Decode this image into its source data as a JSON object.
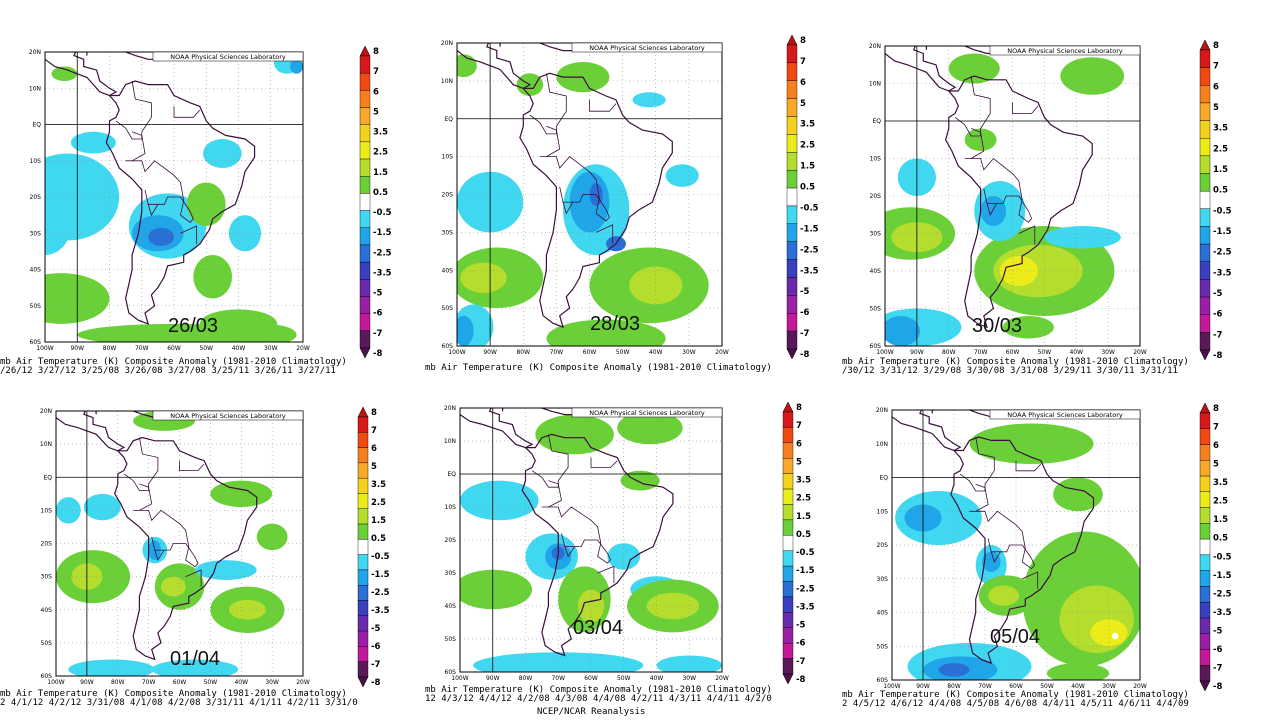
{
  "panels": [
    {
      "date_label": "26/03",
      "caption": "mb Air Temperature (K) Composite Anomaly (1981-2010 Climatology)",
      "dates": "/26/12 3/27/12 3/25/08 3/26/08 3/27/08 3/25/11 3/26/11 3/27/11"
    },
    {
      "date_label": "28/03",
      "caption": "mb Air Temperature (K) Composite Anomaly (1981-2010 Climatology)",
      "dates": ""
    },
    {
      "date_label": "30/03",
      "caption": "mb Air Temperature (K) Composite Anomaly (1981-2010 Climatology)",
      "dates": "/30/12 3/31/12 3/29/08 3/30/08 3/31/08 3/29/11 3/30/11 3/31/11"
    },
    {
      "date_label": "01/04",
      "caption": "mb Air Temperature (K) Composite Anomaly (1981-2010 Climatology)",
      "dates": "2 4/1/12 4/2/12 3/31/08 4/1/08 4/2/08 3/31/11 4/1/11 4/2/11 3/31/0"
    },
    {
      "date_label": "03/04",
      "caption": "mb Air Temperature (K) Composite Anomaly (1981-2010 Climatology)",
      "dates": "12 4/3/12 4/4/12 4/2/08 4/3/08 4/4/08 4/2/11 4/3/11 4/4/11 4/2/0"
    },
    {
      "date_label": "05/04",
      "caption": "mb Air Temperature (K) Composite Anomaly (1981-2010 Climatology)",
      "dates": "2 4/5/12 4/6/12 4/4/08 4/5/08 4/6/08 4/4/11 4/5/11 4/6/11 4/4/09"
    }
  ],
  "credit": "NOAA Physical Sciences Laboratory",
  "lat_labels": [
    "20N",
    "10N",
    "EQ",
    "10S",
    "20S",
    "30S",
    "40S",
    "50S",
    "60S"
  ],
  "lon_labels": [
    "100W",
    "90W",
    "80W",
    "70W",
    "60W",
    "50W",
    "40W",
    "30W",
    "20W"
  ],
  "footer_text": "NCEP/NCAR Reanalysis",
  "chart_data": {
    "type": "heatmap",
    "x_range": [
      -100,
      -20
    ],
    "y_range": [
      -60,
      20
    ],
    "colorbar": {
      "labels": [
        "8",
        "7",
        "6",
        "5",
        "3.5",
        "2.5",
        "1.5",
        "0.5",
        "-0.5",
        "-1.5",
        "-2.5",
        "-3.5",
        "-5",
        "-6",
        "-7",
        "-8"
      ],
      "colors": [
        "#d7191c",
        "#f04a12",
        "#f77f1d",
        "#f9a82a",
        "#f2d21a",
        "#ecec1a",
        "#b4dd2d",
        "#6bd038",
        "#ffffff",
        "#40d8f0",
        "#1fa5e8",
        "#2a6fd6",
        "#3a40c0",
        "#6a2aae",
        "#9a1ea6",
        "#c21a9a",
        "#5a1a5a"
      ],
      "top_color": "#b81414",
      "bottom_color": "#4a1248"
    }
  }
}
